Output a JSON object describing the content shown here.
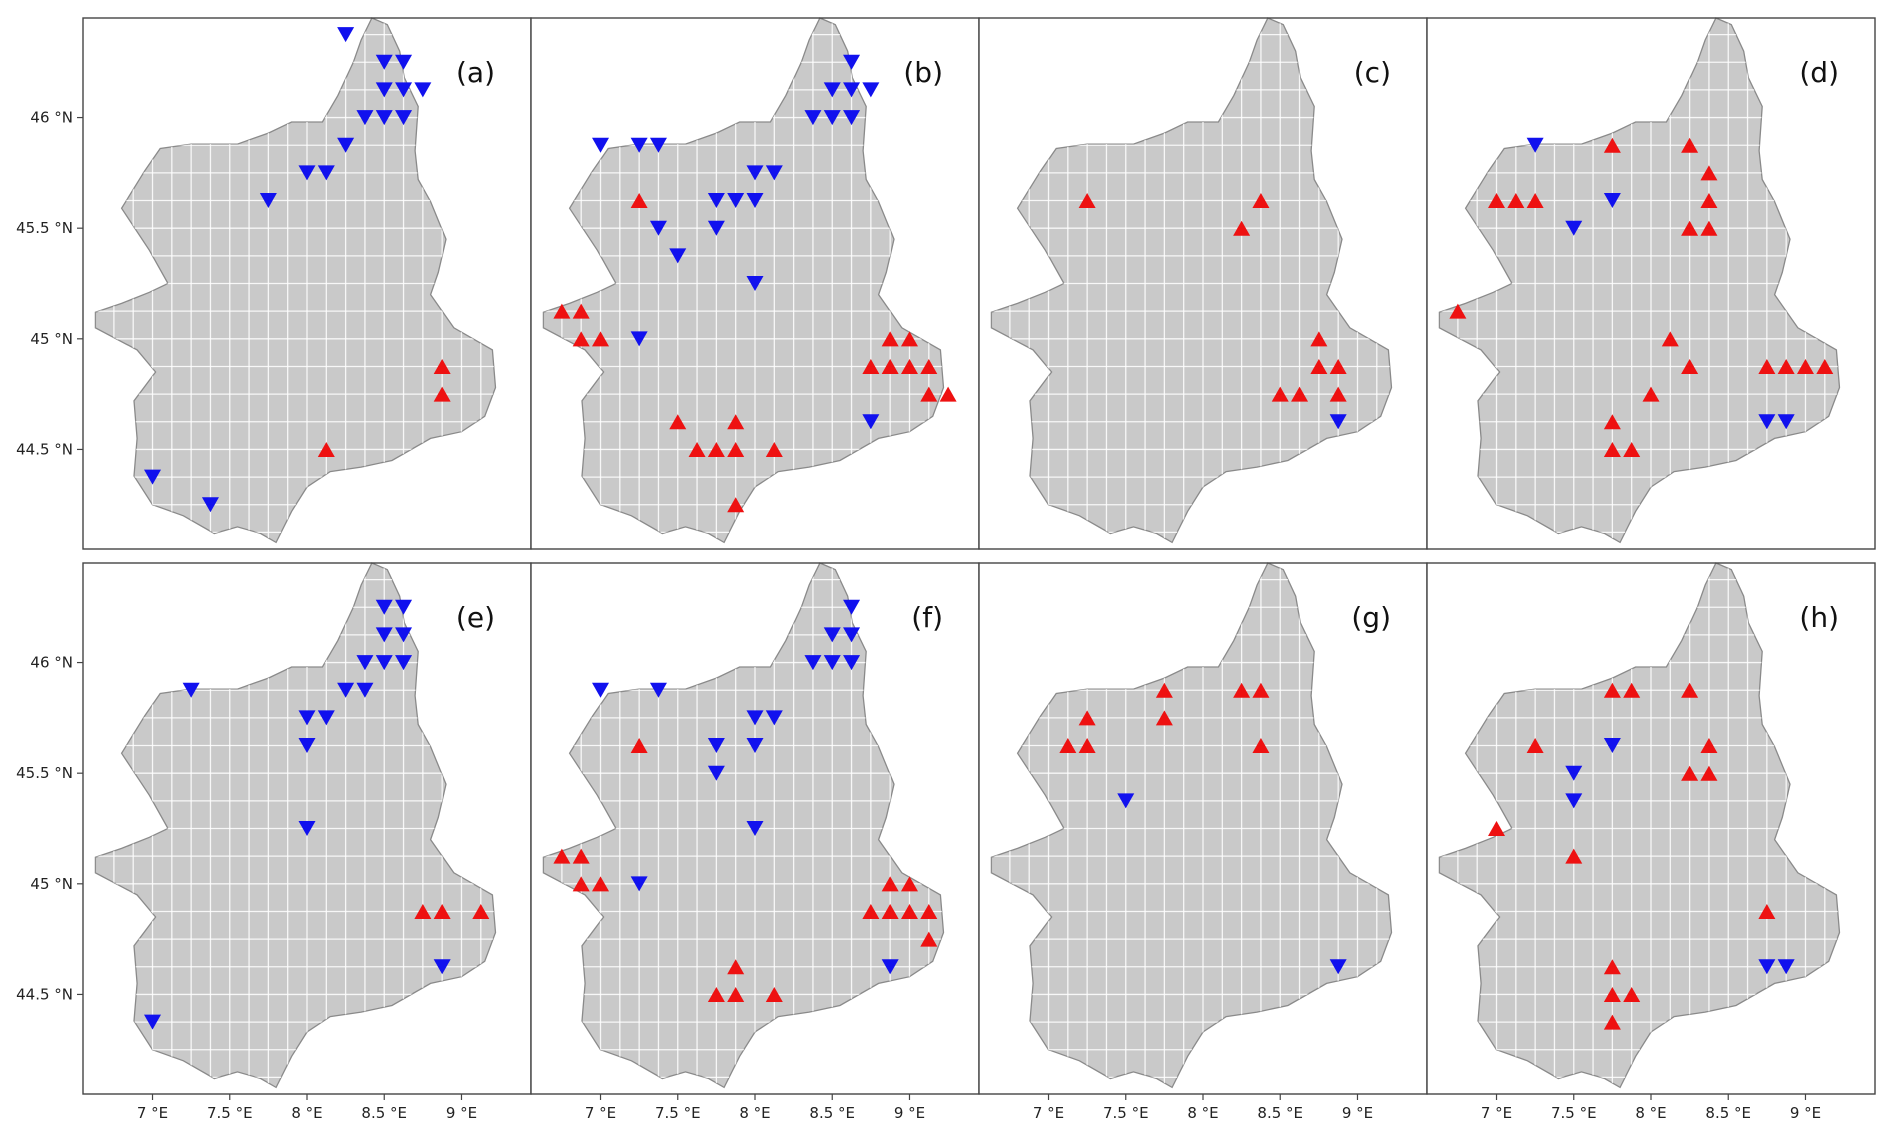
{
  "figure": {
    "lon_range": [
      6.55,
      9.45
    ],
    "lat_range": [
      44.05,
      46.45
    ],
    "grid_step_deg": 0.125,
    "x_ticks": [
      {
        "value": 7.0,
        "label": "7 °E"
      },
      {
        "value": 7.5,
        "label": "7.5 °E"
      },
      {
        "value": 8.0,
        "label": "8 °E"
      },
      {
        "value": 8.5,
        "label": "8.5 °E"
      },
      {
        "value": 9.0,
        "label": "9 °E"
      }
    ],
    "y_ticks": [
      {
        "value": 44.5,
        "label": "44.5 °N"
      },
      {
        "value": 45.0,
        "label": "45 °N"
      },
      {
        "value": 45.5,
        "label": "45.5 °N"
      },
      {
        "value": 46.0,
        "label": "46 °N"
      }
    ],
    "colors": {
      "increase": "#ee1111",
      "decrease": "#1111ee",
      "terrain": "#c9c9c9",
      "terrain_edge": "#8a8a8a",
      "grid": "#ffffff"
    },
    "marker_legend": {
      "up": "red upward triangle",
      "down": "blue downward triangle"
    }
  },
  "region_outline": [
    [
      6.63,
      45.12
    ],
    [
      6.8,
      45.16
    ],
    [
      6.98,
      45.21
    ],
    [
      7.1,
      45.25
    ],
    [
      6.98,
      45.4
    ],
    [
      6.8,
      45.59
    ],
    [
      6.95,
      45.76
    ],
    [
      7.05,
      45.86
    ],
    [
      7.25,
      45.88
    ],
    [
      7.55,
      45.88
    ],
    [
      7.75,
      45.93
    ],
    [
      7.9,
      45.98
    ],
    [
      8.1,
      45.98
    ],
    [
      8.2,
      46.1
    ],
    [
      8.3,
      46.25
    ],
    [
      8.35,
      46.35
    ],
    [
      8.42,
      46.45
    ],
    [
      8.52,
      46.42
    ],
    [
      8.6,
      46.3
    ],
    [
      8.63,
      46.18
    ],
    [
      8.72,
      46.05
    ],
    [
      8.7,
      45.85
    ],
    [
      8.72,
      45.72
    ],
    [
      8.8,
      45.62
    ],
    [
      8.9,
      45.45
    ],
    [
      8.85,
      45.3
    ],
    [
      8.8,
      45.2
    ],
    [
      8.95,
      45.05
    ],
    [
      9.2,
      44.95
    ],
    [
      9.22,
      44.78
    ],
    [
      9.15,
      44.65
    ],
    [
      9.0,
      44.58
    ],
    [
      8.8,
      44.55
    ],
    [
      8.55,
      44.45
    ],
    [
      8.35,
      44.42
    ],
    [
      8.15,
      44.4
    ],
    [
      8.0,
      44.33
    ],
    [
      7.9,
      44.22
    ],
    [
      7.8,
      44.08
    ],
    [
      7.7,
      44.12
    ],
    [
      7.55,
      44.15
    ],
    [
      7.4,
      44.12
    ],
    [
      7.2,
      44.2
    ],
    [
      7.0,
      44.25
    ],
    [
      6.88,
      44.38
    ],
    [
      6.9,
      44.55
    ],
    [
      6.88,
      44.72
    ],
    [
      7.02,
      44.85
    ],
    [
      6.9,
      44.95
    ],
    [
      6.63,
      45.05
    ]
  ],
  "panels": [
    {
      "label": "(a)",
      "show_x_axis": false,
      "show_y_axis": true,
      "stations": [
        {
          "lon": 8.25,
          "lat": 46.375,
          "dir": "down"
        },
        {
          "lon": 8.5,
          "lat": 46.25,
          "dir": "down"
        },
        {
          "lon": 8.625,
          "lat": 46.25,
          "dir": "down"
        },
        {
          "lon": 8.5,
          "lat": 46.125,
          "dir": "down"
        },
        {
          "lon": 8.625,
          "lat": 46.125,
          "dir": "down"
        },
        {
          "lon": 8.75,
          "lat": 46.125,
          "dir": "down"
        },
        {
          "lon": 8.375,
          "lat": 46.0,
          "dir": "down"
        },
        {
          "lon": 8.5,
          "lat": 46.0,
          "dir": "down"
        },
        {
          "lon": 8.625,
          "lat": 46.0,
          "dir": "down"
        },
        {
          "lon": 8.25,
          "lat": 45.875,
          "dir": "down"
        },
        {
          "lon": 8.0,
          "lat": 45.75,
          "dir": "down"
        },
        {
          "lon": 8.125,
          "lat": 45.75,
          "dir": "down"
        },
        {
          "lon": 7.75,
          "lat": 45.625,
          "dir": "down"
        },
        {
          "lon": 8.875,
          "lat": 44.875,
          "dir": "up"
        },
        {
          "lon": 8.875,
          "lat": 44.75,
          "dir": "up"
        },
        {
          "lon": 8.125,
          "lat": 44.5,
          "dir": "up"
        },
        {
          "lon": 7.0,
          "lat": 44.375,
          "dir": "down"
        },
        {
          "lon": 7.375,
          "lat": 44.25,
          "dir": "down"
        }
      ]
    },
    {
      "label": "(b)",
      "show_x_axis": false,
      "show_y_axis": false,
      "stations": [
        {
          "lon": 8.625,
          "lat": 46.25,
          "dir": "down"
        },
        {
          "lon": 8.5,
          "lat": 46.125,
          "dir": "down"
        },
        {
          "lon": 8.625,
          "lat": 46.125,
          "dir": "down"
        },
        {
          "lon": 8.75,
          "lat": 46.125,
          "dir": "down"
        },
        {
          "lon": 8.375,
          "lat": 46.0,
          "dir": "down"
        },
        {
          "lon": 8.5,
          "lat": 46.0,
          "dir": "down"
        },
        {
          "lon": 8.625,
          "lat": 46.0,
          "dir": "down"
        },
        {
          "lon": 7.0,
          "lat": 45.875,
          "dir": "down"
        },
        {
          "lon": 7.25,
          "lat": 45.875,
          "dir": "down"
        },
        {
          "lon": 7.375,
          "lat": 45.875,
          "dir": "down"
        },
        {
          "lon": 8.0,
          "lat": 45.75,
          "dir": "down"
        },
        {
          "lon": 8.125,
          "lat": 45.75,
          "dir": "down"
        },
        {
          "lon": 7.25,
          "lat": 45.625,
          "dir": "up"
        },
        {
          "lon": 7.75,
          "lat": 45.625,
          "dir": "down"
        },
        {
          "lon": 7.875,
          "lat": 45.625,
          "dir": "down"
        },
        {
          "lon": 8.0,
          "lat": 45.625,
          "dir": "down"
        },
        {
          "lon": 7.375,
          "lat": 45.5,
          "dir": "down"
        },
        {
          "lon": 7.75,
          "lat": 45.5,
          "dir": "down"
        },
        {
          "lon": 7.5,
          "lat": 45.375,
          "dir": "down"
        },
        {
          "lon": 8.0,
          "lat": 45.25,
          "dir": "down"
        },
        {
          "lon": 6.75,
          "lat": 45.125,
          "dir": "up"
        },
        {
          "lon": 6.875,
          "lat": 45.125,
          "dir": "up"
        },
        {
          "lon": 6.875,
          "lat": 45.0,
          "dir": "up"
        },
        {
          "lon": 7.0,
          "lat": 45.0,
          "dir": "up"
        },
        {
          "lon": 7.25,
          "lat": 45.0,
          "dir": "down"
        },
        {
          "lon": 8.875,
          "lat": 45.0,
          "dir": "up"
        },
        {
          "lon": 9.0,
          "lat": 45.0,
          "dir": "up"
        },
        {
          "lon": 8.75,
          "lat": 44.875,
          "dir": "up"
        },
        {
          "lon": 8.875,
          "lat": 44.875,
          "dir": "up"
        },
        {
          "lon": 9.0,
          "lat": 44.875,
          "dir": "up"
        },
        {
          "lon": 9.125,
          "lat": 44.875,
          "dir": "up"
        },
        {
          "lon": 9.125,
          "lat": 44.75,
          "dir": "up"
        },
        {
          "lon": 9.25,
          "lat": 44.75,
          "dir": "up"
        },
        {
          "lon": 8.75,
          "lat": 44.625,
          "dir": "down"
        },
        {
          "lon": 7.5,
          "lat": 44.625,
          "dir": "up"
        },
        {
          "lon": 7.875,
          "lat": 44.625,
          "dir": "up"
        },
        {
          "lon": 7.625,
          "lat": 44.5,
          "dir": "up"
        },
        {
          "lon": 7.75,
          "lat": 44.5,
          "dir": "up"
        },
        {
          "lon": 7.875,
          "lat": 44.5,
          "dir": "up"
        },
        {
          "lon": 8.125,
          "lat": 44.5,
          "dir": "up"
        },
        {
          "lon": 7.875,
          "lat": 44.25,
          "dir": "up"
        }
      ]
    },
    {
      "label": "(c)",
      "show_x_axis": false,
      "show_y_axis": false,
      "stations": [
        {
          "lon": 7.25,
          "lat": 45.625,
          "dir": "up"
        },
        {
          "lon": 8.375,
          "lat": 45.625,
          "dir": "up"
        },
        {
          "lon": 8.25,
          "lat": 45.5,
          "dir": "up"
        },
        {
          "lon": 8.75,
          "lat": 45.0,
          "dir": "up"
        },
        {
          "lon": 8.75,
          "lat": 44.875,
          "dir": "up"
        },
        {
          "lon": 8.875,
          "lat": 44.875,
          "dir": "up"
        },
        {
          "lon": 8.5,
          "lat": 44.75,
          "dir": "up"
        },
        {
          "lon": 8.625,
          "lat": 44.75,
          "dir": "up"
        },
        {
          "lon": 8.875,
          "lat": 44.75,
          "dir": "up"
        },
        {
          "lon": 8.875,
          "lat": 44.625,
          "dir": "down"
        }
      ]
    },
    {
      "label": "(d)",
      "show_x_axis": false,
      "show_y_axis": false,
      "stations": [
        {
          "lon": 7.25,
          "lat": 45.875,
          "dir": "down"
        },
        {
          "lon": 7.75,
          "lat": 45.875,
          "dir": "up"
        },
        {
          "lon": 8.25,
          "lat": 45.875,
          "dir": "up"
        },
        {
          "lon": 8.375,
          "lat": 45.75,
          "dir": "up"
        },
        {
          "lon": 7.0,
          "lat": 45.625,
          "dir": "up"
        },
        {
          "lon": 7.125,
          "lat": 45.625,
          "dir": "up"
        },
        {
          "lon": 7.25,
          "lat": 45.625,
          "dir": "up"
        },
        {
          "lon": 7.75,
          "lat": 45.625,
          "dir": "down"
        },
        {
          "lon": 8.375,
          "lat": 45.625,
          "dir": "up"
        },
        {
          "lon": 7.5,
          "lat": 45.5,
          "dir": "down"
        },
        {
          "lon": 8.25,
          "lat": 45.5,
          "dir": "up"
        },
        {
          "lon": 8.375,
          "lat": 45.5,
          "dir": "up"
        },
        {
          "lon": 6.75,
          "lat": 45.125,
          "dir": "up"
        },
        {
          "lon": 8.125,
          "lat": 45.0,
          "dir": "up"
        },
        {
          "lon": 8.25,
          "lat": 44.875,
          "dir": "up"
        },
        {
          "lon": 8.75,
          "lat": 44.875,
          "dir": "up"
        },
        {
          "lon": 8.875,
          "lat": 44.875,
          "dir": "up"
        },
        {
          "lon": 9.0,
          "lat": 44.875,
          "dir": "up"
        },
        {
          "lon": 9.125,
          "lat": 44.875,
          "dir": "up"
        },
        {
          "lon": 8.0,
          "lat": 44.75,
          "dir": "up"
        },
        {
          "lon": 7.75,
          "lat": 44.625,
          "dir": "up"
        },
        {
          "lon": 8.75,
          "lat": 44.625,
          "dir": "down"
        },
        {
          "lon": 8.875,
          "lat": 44.625,
          "dir": "down"
        },
        {
          "lon": 7.75,
          "lat": 44.5,
          "dir": "up"
        },
        {
          "lon": 7.875,
          "lat": 44.5,
          "dir": "up"
        }
      ]
    },
    {
      "label": "(e)",
      "show_x_axis": true,
      "show_y_axis": true,
      "stations": [
        {
          "lon": 8.5,
          "lat": 46.25,
          "dir": "down"
        },
        {
          "lon": 8.625,
          "lat": 46.25,
          "dir": "down"
        },
        {
          "lon": 8.5,
          "lat": 46.125,
          "dir": "down"
        },
        {
          "lon": 8.625,
          "lat": 46.125,
          "dir": "down"
        },
        {
          "lon": 8.375,
          "lat": 46.0,
          "dir": "down"
        },
        {
          "lon": 8.5,
          "lat": 46.0,
          "dir": "down"
        },
        {
          "lon": 8.625,
          "lat": 46.0,
          "dir": "down"
        },
        {
          "lon": 7.25,
          "lat": 45.875,
          "dir": "down"
        },
        {
          "lon": 8.25,
          "lat": 45.875,
          "dir": "down"
        },
        {
          "lon": 8.375,
          "lat": 45.875,
          "dir": "down"
        },
        {
          "lon": 8.0,
          "lat": 45.75,
          "dir": "down"
        },
        {
          "lon": 8.125,
          "lat": 45.75,
          "dir": "down"
        },
        {
          "lon": 8.0,
          "lat": 45.625,
          "dir": "down"
        },
        {
          "lon": 8.0,
          "lat": 45.25,
          "dir": "down"
        },
        {
          "lon": 8.75,
          "lat": 44.875,
          "dir": "up"
        },
        {
          "lon": 8.875,
          "lat": 44.875,
          "dir": "up"
        },
        {
          "lon": 9.125,
          "lat": 44.875,
          "dir": "up"
        },
        {
          "lon": 8.875,
          "lat": 44.625,
          "dir": "down"
        },
        {
          "lon": 7.0,
          "lat": 44.375,
          "dir": "down"
        }
      ]
    },
    {
      "label": "(f)",
      "show_x_axis": true,
      "show_y_axis": false,
      "stations": [
        {
          "lon": 8.625,
          "lat": 46.25,
          "dir": "down"
        },
        {
          "lon": 8.5,
          "lat": 46.125,
          "dir": "down"
        },
        {
          "lon": 8.625,
          "lat": 46.125,
          "dir": "down"
        },
        {
          "lon": 8.375,
          "lat": 46.0,
          "dir": "down"
        },
        {
          "lon": 8.5,
          "lat": 46.0,
          "dir": "down"
        },
        {
          "lon": 8.625,
          "lat": 46.0,
          "dir": "down"
        },
        {
          "lon": 7.0,
          "lat": 45.875,
          "dir": "down"
        },
        {
          "lon": 7.375,
          "lat": 45.875,
          "dir": "down"
        },
        {
          "lon": 8.0,
          "lat": 45.75,
          "dir": "down"
        },
        {
          "lon": 8.125,
          "lat": 45.75,
          "dir": "down"
        },
        {
          "lon": 7.25,
          "lat": 45.625,
          "dir": "up"
        },
        {
          "lon": 7.75,
          "lat": 45.625,
          "dir": "down"
        },
        {
          "lon": 8.0,
          "lat": 45.625,
          "dir": "down"
        },
        {
          "lon": 7.75,
          "lat": 45.5,
          "dir": "down"
        },
        {
          "lon": 8.0,
          "lat": 45.25,
          "dir": "down"
        },
        {
          "lon": 6.75,
          "lat": 45.125,
          "dir": "up"
        },
        {
          "lon": 6.875,
          "lat": 45.125,
          "dir": "up"
        },
        {
          "lon": 6.875,
          "lat": 45.0,
          "dir": "up"
        },
        {
          "lon": 7.0,
          "lat": 45.0,
          "dir": "up"
        },
        {
          "lon": 7.25,
          "lat": 45.0,
          "dir": "down"
        },
        {
          "lon": 8.875,
          "lat": 45.0,
          "dir": "up"
        },
        {
          "lon": 9.0,
          "lat": 45.0,
          "dir": "up"
        },
        {
          "lon": 8.75,
          "lat": 44.875,
          "dir": "up"
        },
        {
          "lon": 8.875,
          "lat": 44.875,
          "dir": "up"
        },
        {
          "lon": 9.0,
          "lat": 44.875,
          "dir": "up"
        },
        {
          "lon": 9.125,
          "lat": 44.875,
          "dir": "up"
        },
        {
          "lon": 9.125,
          "lat": 44.75,
          "dir": "up"
        },
        {
          "lon": 7.875,
          "lat": 44.625,
          "dir": "up"
        },
        {
          "lon": 8.875,
          "lat": 44.625,
          "dir": "down"
        },
        {
          "lon": 7.75,
          "lat": 44.5,
          "dir": "up"
        },
        {
          "lon": 7.875,
          "lat": 44.5,
          "dir": "up"
        },
        {
          "lon": 8.125,
          "lat": 44.5,
          "dir": "up"
        }
      ]
    },
    {
      "label": "(g)",
      "show_x_axis": true,
      "show_y_axis": false,
      "stations": [
        {
          "lon": 7.75,
          "lat": 45.875,
          "dir": "up"
        },
        {
          "lon": 8.25,
          "lat": 45.875,
          "dir": "up"
        },
        {
          "lon": 8.375,
          "lat": 45.875,
          "dir": "up"
        },
        {
          "lon": 7.25,
          "lat": 45.75,
          "dir": "up"
        },
        {
          "lon": 7.75,
          "lat": 45.75,
          "dir": "up"
        },
        {
          "lon": 7.125,
          "lat": 45.625,
          "dir": "up"
        },
        {
          "lon": 7.25,
          "lat": 45.625,
          "dir": "up"
        },
        {
          "lon": 8.375,
          "lat": 45.625,
          "dir": "up"
        },
        {
          "lon": 7.5,
          "lat": 45.375,
          "dir": "down"
        },
        {
          "lon": 8.875,
          "lat": 44.625,
          "dir": "down"
        }
      ]
    },
    {
      "label": "(h)",
      "show_x_axis": true,
      "show_y_axis": false,
      "stations": [
        {
          "lon": 7.75,
          "lat": 45.875,
          "dir": "up"
        },
        {
          "lon": 7.875,
          "lat": 45.875,
          "dir": "up"
        },
        {
          "lon": 8.25,
          "lat": 45.875,
          "dir": "up"
        },
        {
          "lon": 7.25,
          "lat": 45.625,
          "dir": "up"
        },
        {
          "lon": 7.75,
          "lat": 45.625,
          "dir": "down"
        },
        {
          "lon": 8.375,
          "lat": 45.625,
          "dir": "up"
        },
        {
          "lon": 7.5,
          "lat": 45.5,
          "dir": "down"
        },
        {
          "lon": 8.25,
          "lat": 45.5,
          "dir": "up"
        },
        {
          "lon": 8.375,
          "lat": 45.5,
          "dir": "up"
        },
        {
          "lon": 7.5,
          "lat": 45.375,
          "dir": "down"
        },
        {
          "lon": 7.0,
          "lat": 45.25,
          "dir": "up"
        },
        {
          "lon": 7.5,
          "lat": 45.125,
          "dir": "up"
        },
        {
          "lon": 8.75,
          "lat": 44.875,
          "dir": "up"
        },
        {
          "lon": 7.75,
          "lat": 44.625,
          "dir": "up"
        },
        {
          "lon": 8.75,
          "lat": 44.625,
          "dir": "down"
        },
        {
          "lon": 8.875,
          "lat": 44.625,
          "dir": "down"
        },
        {
          "lon": 7.75,
          "lat": 44.5,
          "dir": "up"
        },
        {
          "lon": 7.875,
          "lat": 44.5,
          "dir": "up"
        },
        {
          "lon": 7.75,
          "lat": 44.375,
          "dir": "up"
        }
      ]
    }
  ]
}
